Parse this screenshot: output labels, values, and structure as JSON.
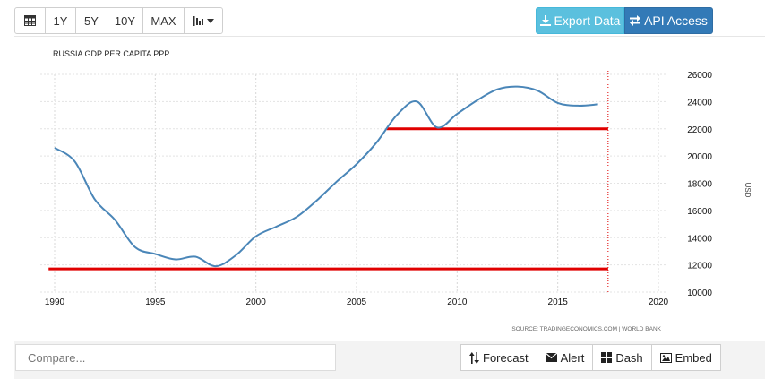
{
  "toolbar": {
    "calendar_icon": "calendar-icon",
    "ranges": [
      "1Y",
      "5Y",
      "10Y",
      "MAX"
    ],
    "chart_type_icon": "bar-chart-icon"
  },
  "header_actions": {
    "export_label": "Export Data",
    "api_label": "API Access"
  },
  "compare": {
    "placeholder": "Compare..."
  },
  "actions": {
    "forecast": "Forecast",
    "alert": "Alert",
    "dash": "Dash",
    "embed": "Embed"
  },
  "source_text": "SOURCE: TRADINGECONOMICS.COM | WORLD BANK",
  "colors": {
    "line": "#4a86b8",
    "annotation": "#e00000",
    "export": "#5bc0de",
    "api": "#337ab7"
  },
  "chart_data": {
    "type": "line",
    "title": "RUSSIA GDP PER CAPITA PPP",
    "ylabel": "USD",
    "x_ticks": [
      "1990",
      "1995",
      "2000",
      "2005",
      "2010",
      "2015",
      "2020"
    ],
    "y_ticks": [
      "26000",
      "24000",
      "22000",
      "20000",
      "18000",
      "16000",
      "14000",
      "12000",
      "10000"
    ],
    "xlim": [
      1990,
      2020
    ],
    "ylim": [
      10000,
      26000
    ],
    "grid": true,
    "series": [
      {
        "x": [
          1990,
          1991,
          1992,
          1993,
          1994,
          1995,
          1996,
          1997,
          1998,
          1999,
          2000,
          2001,
          2002,
          2003,
          2004,
          2005,
          2006,
          2007,
          2008,
          2009,
          2010,
          2011,
          2012,
          2013,
          2014,
          2015,
          2016,
          2017
        ],
        "y": [
          20600,
          19600,
          16800,
          15300,
          13300,
          12800,
          12400,
          12600,
          11900,
          12700,
          14100,
          14800,
          15500,
          16700,
          18100,
          19400,
          21000,
          23000,
          24000,
          22100,
          23100,
          24100,
          24900,
          25100,
          24800,
          23900,
          23700,
          23800
        ]
      }
    ],
    "annotations": [
      {
        "type": "hline",
        "y": 11700,
        "x_start": 1989.7,
        "x_end": 2017.5
      },
      {
        "type": "hline",
        "y": 22000,
        "x_start": 2006.5,
        "x_end": 2017.5
      },
      {
        "type": "vline",
        "x": 2017.5,
        "style": "dotted"
      }
    ]
  }
}
